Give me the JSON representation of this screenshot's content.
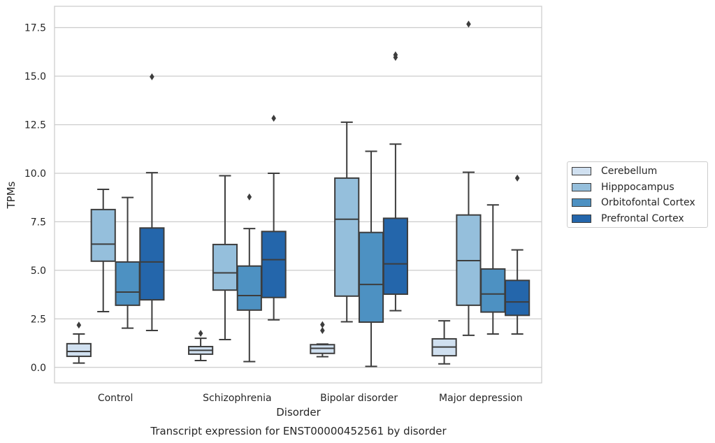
{
  "chart_data": {
    "type": "boxplot",
    "caption": "Transcript expression for ENST00000452561 by disorder",
    "xlabel": "Disorder",
    "ylabel": "TPMs",
    "ylim": [
      -0.8,
      18.6
    ],
    "yticks": [
      0.0,
      2.5,
      5.0,
      7.5,
      10.0,
      12.5,
      15.0,
      17.5
    ],
    "ytick_labels": [
      "0.0",
      "2.5",
      "5.0",
      "7.5",
      "10.0",
      "12.5",
      "15.0",
      "17.5"
    ],
    "grid": true,
    "legend_position": "right",
    "categories": [
      "Control",
      "Schizophrenia",
      "Bipolar disorder",
      "Major depression"
    ],
    "series": [
      {
        "name": "Cerebellum",
        "color": "#d0e0f0",
        "boxes": [
          {
            "whisker_low": 0.22,
            "q1": 0.57,
            "median": 0.82,
            "q3": 1.22,
            "whisker_high": 1.72,
            "outliers": [
              2.18
            ]
          },
          {
            "whisker_low": 0.35,
            "q1": 0.68,
            "median": 0.88,
            "q3": 1.07,
            "whisker_high": 1.5,
            "outliers": [
              1.75
            ]
          },
          {
            "whisker_low": 0.55,
            "q1": 0.72,
            "median": 0.98,
            "q3": 1.17,
            "whisker_high": 1.2,
            "outliers": [
              1.9,
              2.2
            ]
          },
          {
            "whisker_low": 0.18,
            "q1": 0.6,
            "median": 1.05,
            "q3": 1.47,
            "whisker_high": 2.4,
            "outliers": []
          }
        ]
      },
      {
        "name": "Hipppocampus",
        "color": "#95bfdc",
        "boxes": [
          {
            "whisker_low": 2.87,
            "q1": 5.47,
            "median": 6.35,
            "q3": 8.13,
            "whisker_high": 9.17,
            "outliers": []
          },
          {
            "whisker_low": 1.43,
            "q1": 3.98,
            "median": 4.87,
            "q3": 6.33,
            "whisker_high": 9.87,
            "outliers": []
          },
          {
            "whisker_low": 2.35,
            "q1": 3.67,
            "median": 7.63,
            "q3": 9.75,
            "whisker_high": 12.63,
            "outliers": []
          },
          {
            "whisker_low": 1.65,
            "q1": 3.2,
            "median": 5.5,
            "q3": 7.85,
            "whisker_high": 10.05,
            "outliers": [
              17.68
            ]
          }
        ]
      },
      {
        "name": "Orbitofontal Cortex",
        "color": "#4d91c2",
        "boxes": [
          {
            "whisker_low": 2.02,
            "q1": 3.2,
            "median": 3.88,
            "q3": 5.43,
            "whisker_high": 8.75,
            "outliers": []
          },
          {
            "whisker_low": 0.3,
            "q1": 2.95,
            "median": 3.7,
            "q3": 5.22,
            "whisker_high": 7.15,
            "outliers": [
              8.78
            ]
          },
          {
            "whisker_low": 0.05,
            "q1": 2.33,
            "median": 4.27,
            "q3": 6.95,
            "whisker_high": 11.13,
            "outliers": []
          },
          {
            "whisker_low": 1.72,
            "q1": 2.85,
            "median": 3.78,
            "q3": 5.07,
            "whisker_high": 8.37,
            "outliers": []
          }
        ]
      },
      {
        "name": "Prefrontal Cortex",
        "color": "#2466ab",
        "boxes": [
          {
            "whisker_low": 1.9,
            "q1": 3.48,
            "median": 5.43,
            "q3": 7.18,
            "whisker_high": 10.03,
            "outliers": [
              14.97
            ]
          },
          {
            "whisker_low": 2.45,
            "q1": 3.6,
            "median": 5.55,
            "q3": 7.0,
            "whisker_high": 10.0,
            "outliers": [
              12.83
            ]
          },
          {
            "whisker_low": 2.92,
            "q1": 3.77,
            "median": 5.33,
            "q3": 7.68,
            "whisker_high": 11.5,
            "outliers": [
              15.97,
              16.1
            ]
          },
          {
            "whisker_low": 1.72,
            "q1": 2.68,
            "median": 3.37,
            "q3": 4.48,
            "whisker_high": 6.05,
            "outliers": [
              9.75
            ]
          }
        ]
      }
    ]
  }
}
